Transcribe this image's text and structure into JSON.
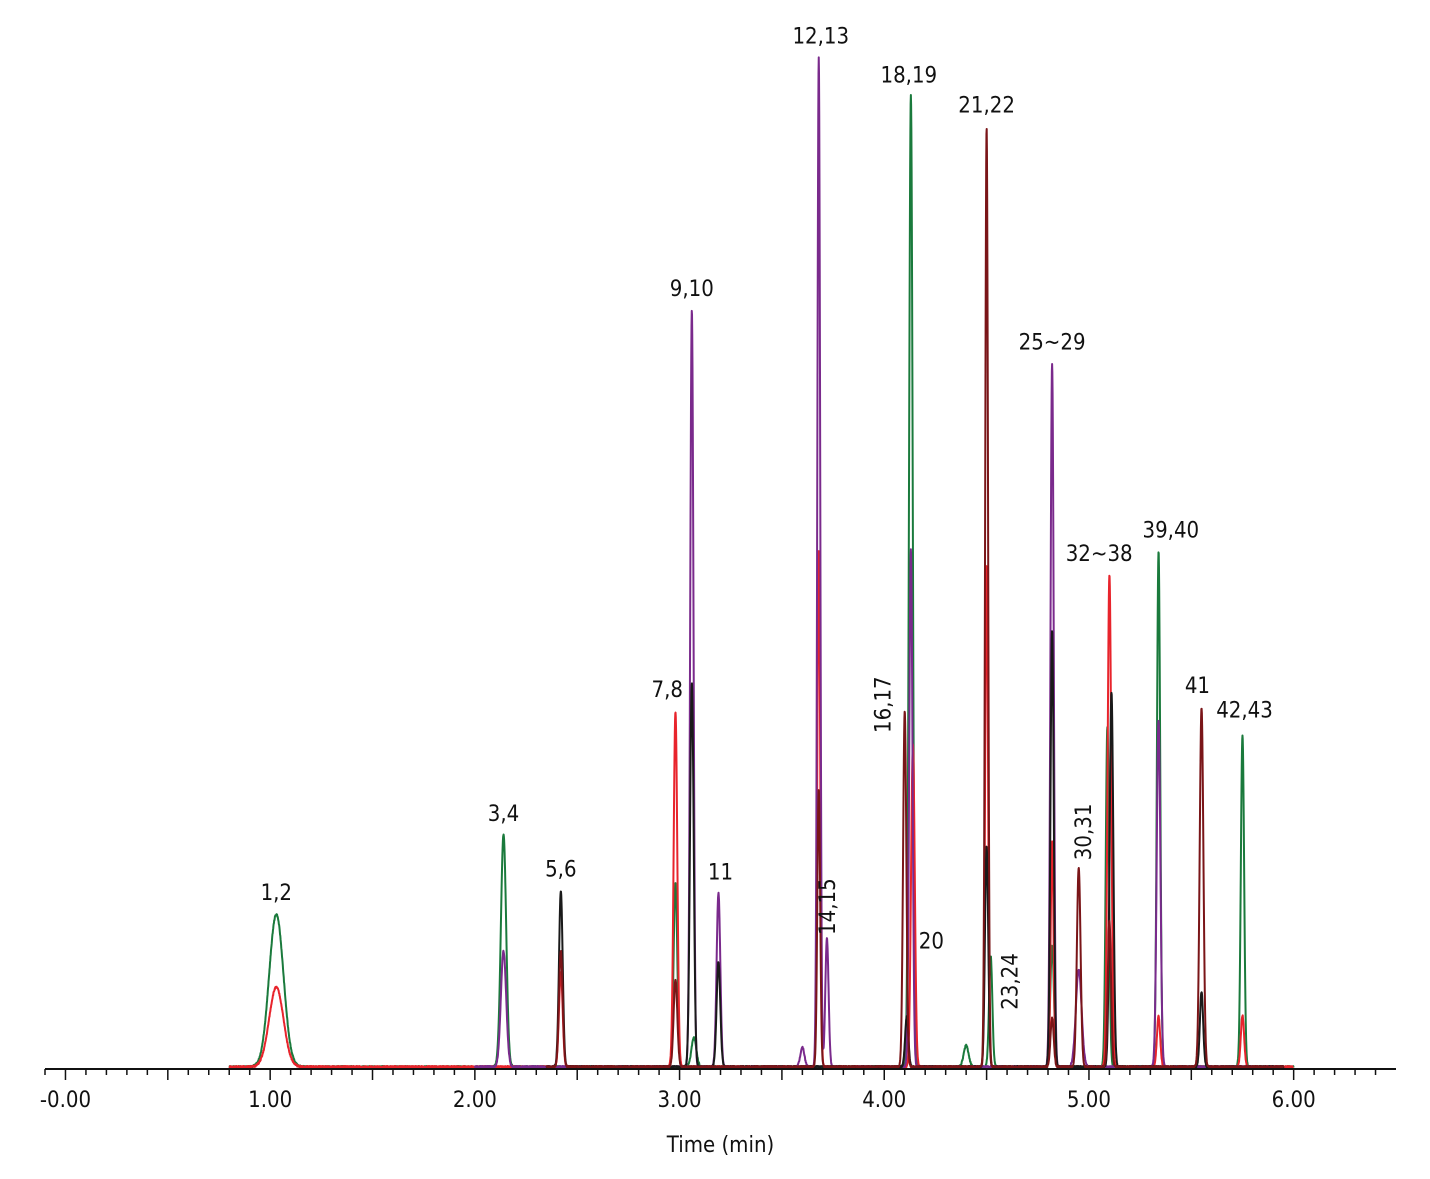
{
  "chart_data": {
    "type": "line",
    "title": "",
    "xlabel": "Time (min)",
    "ylabel": "",
    "xlim": [
      -0.1,
      6.5
    ],
    "ylim": [
      0,
      100
    ],
    "x_ticks": [
      {
        "value": 0,
        "label": "-0.00"
      },
      {
        "value": 1,
        "label": "1.00"
      },
      {
        "value": 2,
        "label": "2.00"
      },
      {
        "value": 3,
        "label": "3.00"
      },
      {
        "value": 4,
        "label": "4.00"
      },
      {
        "value": 5,
        "label": "5.00"
      },
      {
        "value": 6,
        "label": "6.00"
      }
    ],
    "grid": false,
    "colors": {
      "green": "#1a7a3c",
      "red": "#e8242c",
      "purple": "#7a2a8c",
      "black": "#1a1a1a",
      "maroon": "#7a1518"
    },
    "series": [
      {
        "color": "green",
        "range": [
          0.8,
          6.0
        ],
        "peaks": [
          {
            "x": 1.03,
            "y": 15.7,
            "w": 0.035
          },
          {
            "x": 2.14,
            "y": 23.9,
            "w": 0.013
          },
          {
            "x": 2.98,
            "y": 19.0,
            "w": 0.009
          },
          {
            "x": 3.07,
            "y": 3.0,
            "w": 0.012
          },
          {
            "x": 4.13,
            "y": 100.0,
            "w": 0.009
          },
          {
            "x": 4.4,
            "y": 2.2,
            "w": 0.012
          },
          {
            "x": 4.52,
            "y": 11.4,
            "w": 0.008
          },
          {
            "x": 4.82,
            "y": 12.5,
            "w": 0.009
          },
          {
            "x": 5.09,
            "y": 35.0,
            "w": 0.008
          },
          {
            "x": 5.34,
            "y": 53.1,
            "w": 0.008
          },
          {
            "x": 5.75,
            "y": 34.2,
            "w": 0.008
          }
        ]
      },
      {
        "color": "red",
        "range": [
          0.8,
          6.0
        ],
        "peaks": [
          {
            "x": 1.03,
            "y": 8.2,
            "w": 0.035
          },
          {
            "x": 2.42,
            "y": 9.7,
            "w": 0.009
          },
          {
            "x": 2.98,
            "y": 36.6,
            "w": 0.009
          },
          {
            "x": 3.68,
            "y": 53.1,
            "w": 0.007
          },
          {
            "x": 4.14,
            "y": 33.2,
            "w": 0.009
          },
          {
            "x": 4.5,
            "y": 51.7,
            "w": 0.007
          },
          {
            "x": 4.82,
            "y": 23.3,
            "w": 0.007
          },
          {
            "x": 5.1,
            "y": 50.7,
            "w": 0.009
          },
          {
            "x": 5.34,
            "y": 5.2,
            "w": 0.008
          },
          {
            "x": 5.75,
            "y": 5.3,
            "w": 0.008
          }
        ]
      },
      {
        "color": "purple",
        "range": [
          2.0,
          5.95
        ],
        "peaks": [
          {
            "x": 2.14,
            "y": 11.9,
            "w": 0.013
          },
          {
            "x": 3.06,
            "y": 77.9,
            "w": 0.008
          },
          {
            "x": 3.19,
            "y": 17.9,
            "w": 0.009
          },
          {
            "x": 3.6,
            "y": 2.0,
            "w": 0.01
          },
          {
            "x": 3.68,
            "y": 103.9,
            "w": 0.007
          },
          {
            "x": 3.72,
            "y": 13.2,
            "w": 0.008
          },
          {
            "x": 4.13,
            "y": 53.3,
            "w": 0.008
          },
          {
            "x": 4.82,
            "y": 72.4,
            "w": 0.008
          },
          {
            "x": 4.95,
            "y": 10.0,
            "w": 0.014
          },
          {
            "x": 5.34,
            "y": 35.6,
            "w": 0.009
          }
        ]
      },
      {
        "color": "black",
        "range": [
          2.35,
          5.95
        ],
        "peaks": [
          {
            "x": 2.42,
            "y": 18.1,
            "w": 0.009
          },
          {
            "x": 3.06,
            "y": 39.5,
            "w": 0.009
          },
          {
            "x": 3.19,
            "y": 10.8,
            "w": 0.009
          },
          {
            "x": 4.11,
            "y": 5.2,
            "w": 0.008
          },
          {
            "x": 4.5,
            "y": 22.7,
            "w": 0.008
          },
          {
            "x": 4.82,
            "y": 45.0,
            "w": 0.008
          },
          {
            "x": 5.11,
            "y": 38.6,
            "w": 0.009
          },
          {
            "x": 5.55,
            "y": 7.7,
            "w": 0.008
          }
        ]
      },
      {
        "color": "maroon",
        "range": [
          2.35,
          5.95
        ],
        "peaks": [
          {
            "x": 2.42,
            "y": 11.9,
            "w": 0.009
          },
          {
            "x": 2.98,
            "y": 9.0,
            "w": 0.009
          },
          {
            "x": 3.68,
            "y": 28.6,
            "w": 0.007
          },
          {
            "x": 4.1,
            "y": 36.6,
            "w": 0.008
          },
          {
            "x": 4.5,
            "y": 96.8,
            "w": 0.007
          },
          {
            "x": 4.82,
            "y": 5.0,
            "w": 0.008
          },
          {
            "x": 4.95,
            "y": 20.5,
            "w": 0.009
          },
          {
            "x": 5.1,
            "y": 15.0,
            "w": 0.008
          },
          {
            "x": 5.55,
            "y": 37.0,
            "w": 0.009
          }
        ]
      }
    ],
    "annotations": [
      {
        "text": "1,2",
        "x": 1.03,
        "y": 16.8,
        "rotate": false
      },
      {
        "text": "3,4",
        "x": 2.14,
        "y": 24.9,
        "rotate": false
      },
      {
        "text": "5,6",
        "x": 2.42,
        "y": 19.2,
        "rotate": false
      },
      {
        "text": "7,8",
        "x": 2.94,
        "y": 37.7,
        "rotate": false
      },
      {
        "text": "9,10",
        "x": 3.06,
        "y": 79.0,
        "rotate": false
      },
      {
        "text": "11",
        "x": 3.2,
        "y": 18.9,
        "rotate": false
      },
      {
        "text": "12,13",
        "x": 3.69,
        "y": 105.0,
        "rotate": false
      },
      {
        "text": "14,15",
        "x": 3.76,
        "y": 13.8,
        "rotate": true
      },
      {
        "text": "16,17",
        "x": 4.03,
        "y": 34.6,
        "rotate": true
      },
      {
        "text": "18,19",
        "x": 4.12,
        "y": 101.0,
        "rotate": false
      },
      {
        "text": "20",
        "x": 4.23,
        "y": 11.8,
        "rotate": false
      },
      {
        "text": "21,22",
        "x": 4.5,
        "y": 97.9,
        "rotate": false
      },
      {
        "text": "23,24",
        "x": 4.65,
        "y": 6.1,
        "rotate": true
      },
      {
        "text": "25~29",
        "x": 4.82,
        "y": 73.5,
        "rotate": false
      },
      {
        "text": "30,31",
        "x": 5.01,
        "y": 21.5,
        "rotate": true
      },
      {
        "text": "32~38",
        "x": 5.05,
        "y": 51.7,
        "rotate": false
      },
      {
        "text": "39,40",
        "x": 5.4,
        "y": 54.1,
        "rotate": false
      },
      {
        "text": "41",
        "x": 5.53,
        "y": 38.1,
        "rotate": false
      },
      {
        "text": "42,43",
        "x": 5.76,
        "y": 35.6,
        "rotate": false
      }
    ]
  }
}
